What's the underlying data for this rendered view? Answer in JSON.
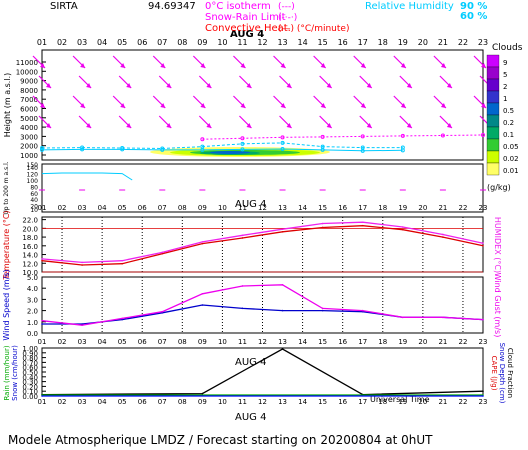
{
  "header": {
    "site": "SIRTA",
    "coord": "94.69347",
    "legend": [
      {
        "label": "0°C isotherm",
        "style": "(---)",
        "color": "#ff00ff"
      },
      {
        "label": "Snow-Rain Limit",
        "style": "(-·-·)",
        "color": "#ff00ff"
      },
      {
        "label": "Convective Heat.",
        "style": "(—) (°C/minute)",
        "color": "#ff0000"
      }
    ],
    "rh_label": "Relative Humidity",
    "rh_values": [
      "90 %",
      "60 %"
    ],
    "rh_color": "#00ccff"
  },
  "footer": {
    "title": "Modele Atmospherique LMDZ / Forecast starting on 20200804 at 0hUT",
    "axis_title": "Universal Time"
  },
  "date_label": "AUG 4",
  "colorbar": {
    "title": "Clouds",
    "unit": "(g/kg)",
    "labels": [
      "9",
      "5",
      "2",
      "1",
      "0.5",
      "0.2",
      "0.1",
      "0.05",
      "0.02",
      "0.01"
    ],
    "colors": [
      "#cc00ff",
      "#9900cc",
      "#6600cc",
      "#3333cc",
      "#0066cc",
      "#008888",
      "#00aa66",
      "#33cc33",
      "#ccff00",
      "#ffff66"
    ]
  },
  "chart_data": [
    {
      "type": "line",
      "panel": "Height",
      "ylabel": "Height (m a.s.l.)",
      "y_ticks": [
        "1000",
        "2000",
        "3000",
        "4000",
        "5000",
        "6000",
        "7000",
        "8000",
        "9000",
        "10000",
        "11000"
      ],
      "y_ticks_low_label": "Up to 200 m a.s.l.",
      "y_ticks_low": [
        "10",
        "20",
        "40",
        "60",
        "80",
        "100",
        "120",
        "140",
        "150"
      ],
      "x_ticks": [
        "01",
        "02",
        "03",
        "04",
        "05",
        "06",
        "07",
        "08",
        "09",
        "10",
        "11",
        "12",
        "13",
        "14",
        "15",
        "16",
        "17",
        "18",
        "19",
        "20",
        "21",
        "22",
        "23"
      ],
      "series": [
        {
          "name": "Relative Humidity 90 %",
          "x": [
            1,
            3,
            5,
            7,
            9,
            11,
            13,
            15,
            17,
            19
          ],
          "y": [
            1550,
            1600,
            1600,
            1550,
            1550,
            1600,
            1650,
            1550,
            1450,
            1500
          ]
        },
        {
          "name": "Relative Humidity 60 %",
          "x": [
            1,
            3,
            5,
            7,
            9,
            11,
            13,
            15,
            17,
            19
          ],
          "y": [
            1750,
            1800,
            1750,
            1700,
            1900,
            2200,
            2300,
            1900,
            1800,
            1800
          ]
        },
        {
          "name": "0°C isotherm",
          "x": [
            9,
            11,
            13,
            15,
            17,
            19,
            21,
            23
          ],
          "y": [
            2700,
            2800,
            2900,
            2950,
            3000,
            3050,
            3100,
            3150
          ]
        }
      ],
      "low_series": [
        {
          "name": "Relative Humidity",
          "x": [
            1,
            2,
            3,
            4,
            5,
            5.5
          ],
          "y": [
            120,
            122,
            122,
            122,
            120,
            100
          ]
        }
      ]
    },
    {
      "type": "line",
      "panel": "Temperature",
      "ylabel": "Temperature (°C)",
      "y2label": "HUMIDEX (°C)",
      "ylim": [
        10,
        22.6
      ],
      "y_ticks": [
        "10.0",
        "12.0",
        "14.0",
        "16.0",
        "18.0",
        "20.0",
        "22.0"
      ],
      "x": [
        1,
        3,
        5,
        7,
        9,
        11,
        13,
        15,
        17,
        19,
        21,
        23
      ],
      "series": [
        {
          "name": "Temperature",
          "color": "#dd0000",
          "values": [
            12.6,
            11.6,
            11.9,
            14.2,
            16.5,
            17.8,
            19.2,
            20.2,
            20.6,
            19.7,
            18.0,
            16.0
          ]
        },
        {
          "name": "HUMIDEX",
          "color": "#ee22ee",
          "values": [
            13.0,
            12.2,
            12.6,
            14.5,
            16.9,
            18.4,
            19.8,
            21.1,
            21.4,
            20.3,
            18.6,
            16.6
          ]
        }
      ]
    },
    {
      "type": "line",
      "panel": "Wind",
      "ylabel": "Wind Speed (m/s)",
      "y2label": "Wind Gust (m/s)",
      "ylim": [
        0,
        5
      ],
      "y_ticks": [
        "0.0",
        "1.0",
        "2.0",
        "3.0",
        "4.0",
        "5.0"
      ],
      "x": [
        1,
        3,
        5,
        7,
        9,
        11,
        13,
        15,
        17,
        19,
        21,
        23
      ],
      "series": [
        {
          "name": "Wind Speed",
          "color": "#0000cc",
          "values": [
            0.8,
            0.8,
            1.2,
            1.8,
            2.5,
            2.2,
            2.0,
            2.0,
            1.9,
            1.4,
            1.4,
            1.2
          ]
        },
        {
          "name": "Wind Gust",
          "color": "#ee00ee",
          "values": [
            1.1,
            0.7,
            1.3,
            1.9,
            3.5,
            4.2,
            4.3,
            2.2,
            2.0,
            1.4,
            1.4,
            1.2
          ]
        }
      ]
    },
    {
      "type": "line",
      "panel": "Rain",
      "ylabel": "Rain (mm/hour)",
      "ylabel2": "Snow (cm/hour)",
      "y2label": "CAPE (J/g)",
      "y2label2": "Snow Depth (cm)",
      "y2label3": "Cloud Fraction",
      "ylim": [
        0,
        1.0
      ],
      "y_ticks": [
        "0.00",
        "0.10",
        "0.20",
        "0.30",
        "0.40",
        "0.50",
        "0.60",
        "0.70",
        "0.80",
        "0.90",
        "1.00"
      ],
      "x_ticks": [
        "01",
        "02",
        "03",
        "04",
        "05",
        "06",
        "07",
        "08",
        "09",
        "10",
        "11",
        "12",
        "13",
        "14",
        "15",
        "16",
        "17",
        "18",
        "19",
        "20",
        "21",
        "22",
        "23"
      ],
      "series": [
        {
          "name": "CAPE",
          "color": "#000000",
          "x": [
            1,
            9,
            13,
            17,
            23
          ],
          "values": [
            0.03,
            0.05,
            0.98,
            0.03,
            0.1
          ]
        },
        {
          "name": "Rain",
          "color": "#00aa00",
          "x": [
            1,
            23
          ],
          "values": [
            0.02,
            0.02
          ]
        },
        {
          "name": "Snow Depth",
          "color": "#0000ff",
          "x": [
            1,
            23
          ],
          "values": [
            0.0,
            0.0
          ]
        }
      ]
    }
  ]
}
